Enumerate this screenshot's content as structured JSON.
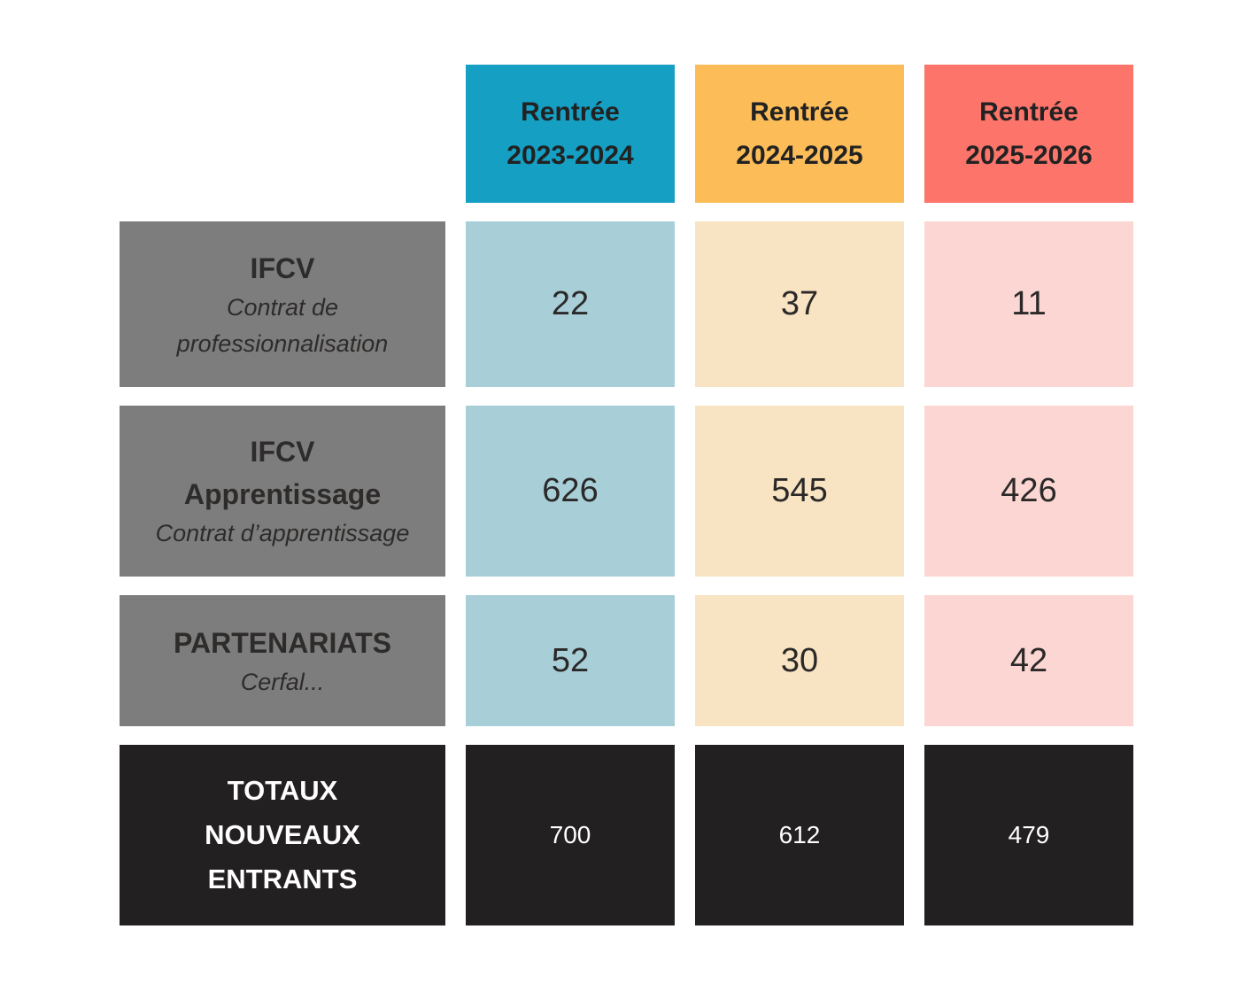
{
  "theme": {
    "page_background": "#ffffff",
    "row_header_bg": "#7d7d7d",
    "totals_bg": "#232021",
    "dark_text": "#2e2c2b",
    "light_text": "#ffffff"
  },
  "table": {
    "columns": [
      {
        "label": "Rentrée\n2023-2024",
        "header_color": "#149fc3",
        "cell_color": "#a8ced8"
      },
      {
        "label": "Rentrée\n2024-2025",
        "header_color": "#fcbd59",
        "cell_color": "#f8e3c3"
      },
      {
        "label": "Rentrée\n2025-2026",
        "header_color": "#fd746a",
        "cell_color": "#fbd6d2"
      }
    ],
    "rows": [
      {
        "title": "IFCV",
        "subtitle": "Contrat de\nprofessionnalisation",
        "values": [
          "22",
          "37",
          "11"
        ]
      },
      {
        "title": "IFCV\nApprentissage",
        "subtitle": "Contrat d’apprentissage",
        "values": [
          "626",
          "545",
          "426"
        ]
      },
      {
        "title": "PARTENARIATS",
        "subtitle": "Cerfal...",
        "values": [
          "52",
          "30",
          "42"
        ]
      }
    ],
    "totals": {
      "label": "TOTAUX\nNOUVEAUX\nENTRANTS",
      "values": [
        "700",
        "612",
        "479"
      ]
    }
  },
  "chart_data": {
    "type": "table",
    "title": "",
    "columns": [
      "Rentrée 2023-2024",
      "Rentrée 2024-2025",
      "Rentrée 2025-2026"
    ],
    "rows": [
      {
        "label": "IFCV (Contrat de professionnalisation)",
        "values": [
          22,
          37,
          11
        ]
      },
      {
        "label": "IFCV Apprentissage (Contrat d’apprentissage)",
        "values": [
          626,
          545,
          426
        ]
      },
      {
        "label": "PARTENARIATS (Cerfal...)",
        "values": [
          52,
          30,
          42
        ]
      },
      {
        "label": "TOTAUX NOUVEAUX ENTRANTS",
        "values": [
          700,
          612,
          479
        ]
      }
    ],
    "column_colors": [
      "#149fc3",
      "#fcbd59",
      "#fd746a"
    ]
  }
}
